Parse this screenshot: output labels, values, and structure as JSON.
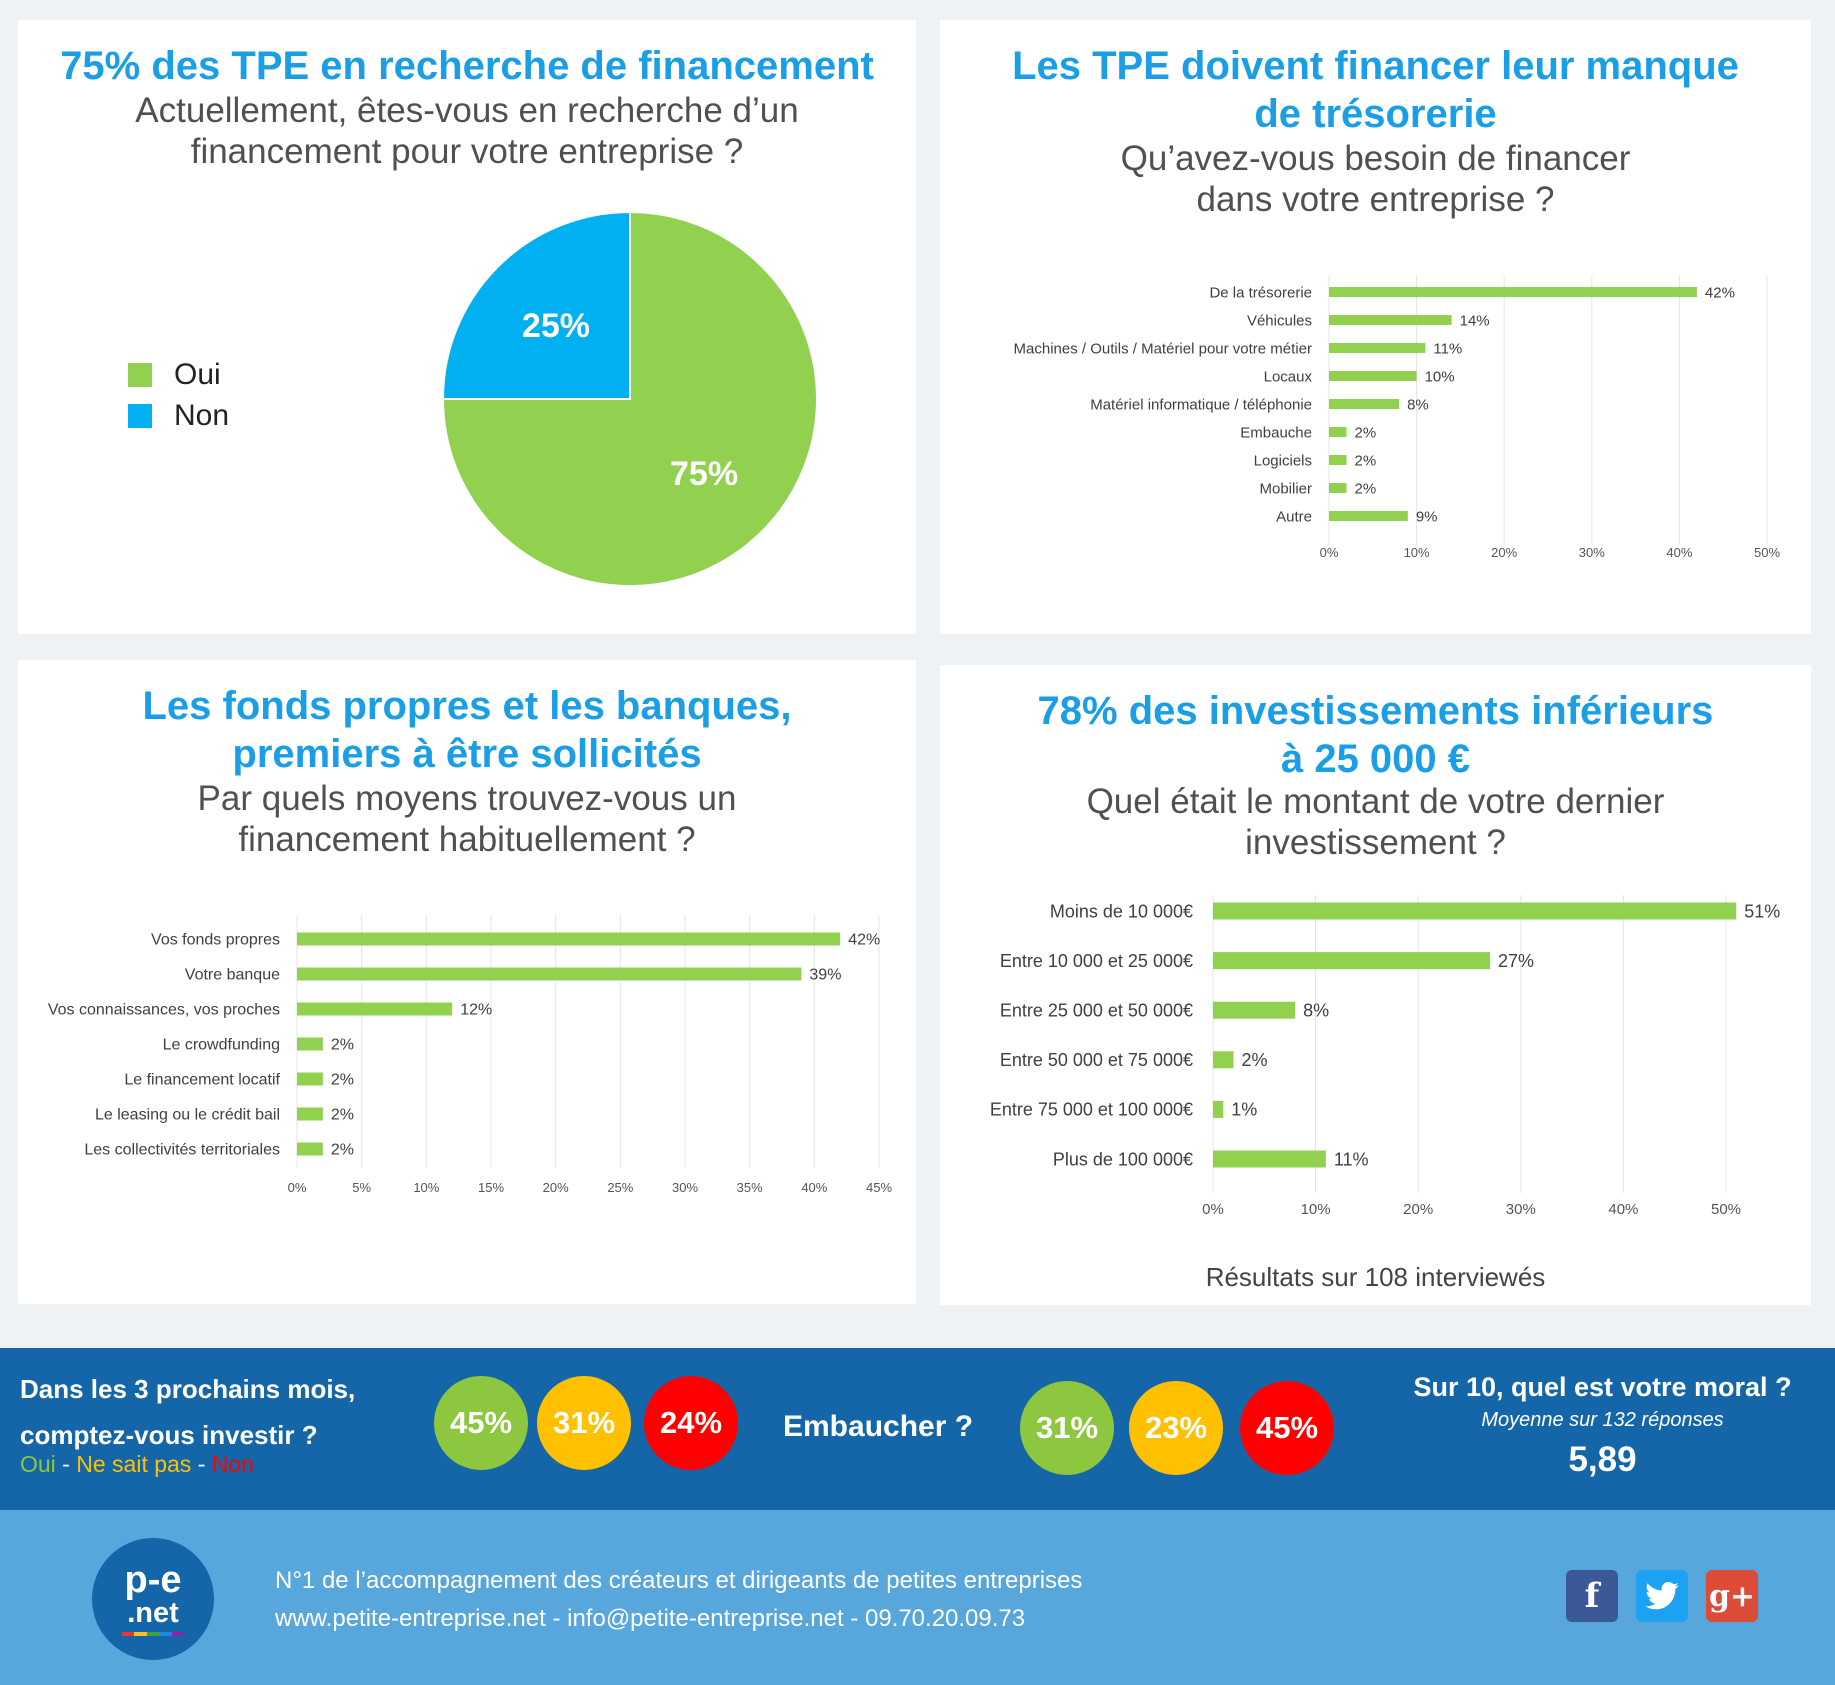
{
  "panel1": {
    "title": "75% des TPE en recherche de financement",
    "question_l1": "Actuellement, êtes-vous en recherche d’un",
    "question_l2": "financement pour votre entreprise ?"
  },
  "panel2": {
    "title_l1": "Les TPE doivent financer leur manque",
    "title_l2": "de trésorerie",
    "question_l1": "Qu’avez-vous besoin de financer",
    "question_l2": "dans votre entreprise ?"
  },
  "panel3": {
    "title_l1": "Les fonds propres et les banques,",
    "title_l2": "premiers à être sollicités",
    "question_l1": "Par quels moyens trouvez-vous un",
    "question_l2": "financement habituellement ?"
  },
  "panel4": {
    "title_l1": "78% des investissements inférieurs",
    "title_l2": "à 25 000 €",
    "question_l1": "Quel était le montant de votre dernier",
    "question_l2": "investissement ?",
    "footnote": "Résultats sur 108 interviewés"
  },
  "chart_data": [
    {
      "type": "pie",
      "categories": [
        "Oui",
        "Non"
      ],
      "values": [
        75,
        25
      ],
      "labels": [
        "75%",
        "25%"
      ],
      "colors": [
        "#92d050",
        "#00b0f0"
      ],
      "legend": "left"
    },
    {
      "type": "bar",
      "orientation": "horizontal",
      "categories": [
        "De la trésorerie",
        "Véhicules",
        "Machines / Outils / Matériel pour votre métier",
        "Locaux",
        "Matériel informatique / téléphonie",
        "Embauche",
        "Logiciels",
        "Mobilier",
        "Autre"
      ],
      "values": [
        42,
        14,
        11,
        10,
        8,
        2,
        2,
        2,
        9
      ],
      "xlim": [
        0,
        50
      ],
      "xticks": [
        "0%",
        "10%",
        "20%",
        "30%",
        "40%",
        "50%"
      ],
      "grid": true,
      "color": "#92d050"
    },
    {
      "type": "bar",
      "orientation": "horizontal",
      "categories": [
        "Vos fonds propres",
        "Votre banque",
        "Vos connaissances, vos proches",
        "Le crowdfunding",
        "Le financement locatif",
        "Le leasing ou le crédit bail",
        "Les collectivités territoriales"
      ],
      "values": [
        42,
        39,
        12,
        2,
        2,
        2,
        2
      ],
      "xlim": [
        0,
        45
      ],
      "xticks": [
        "0%",
        "5%",
        "10%",
        "15%",
        "20%",
        "25%",
        "30%",
        "35%",
        "40%",
        "45%"
      ],
      "grid": true,
      "color": "#92d050"
    },
    {
      "type": "bar",
      "orientation": "horizontal",
      "categories": [
        "Moins de 10 000€",
        "Entre 10 000 et 25 000€",
        "Entre 25 000 et 50 000€",
        "Entre 50 000 et 75 000€",
        "Entre 75 000 et 100 000€",
        "Plus de 100 000€"
      ],
      "values": [
        51,
        27,
        8,
        2,
        1,
        11
      ],
      "xlim": [
        0,
        50
      ],
      "xticks": [
        "0%",
        "10%",
        "20%",
        "30%",
        "40%",
        "50%"
      ],
      "grid": true,
      "color": "#92d050"
    }
  ],
  "band": {
    "invest_q_l1": "Dans les 3 prochains mois,",
    "invest_q_l2": "comptez-vous investir ?",
    "legend_oui": "Oui",
    "legend_sep1": " - ",
    "legend_nsp": "Ne sait pas",
    "legend_sep2": " - ",
    "legend_non": "Non",
    "invest_oui": "45%",
    "invest_nsp": "31%",
    "invest_non": "24%",
    "hire_q": "Embaucher ?",
    "hire_oui": "31%",
    "hire_nsp": "23%",
    "hire_non": "45%",
    "moral_q": "Sur 10, quel est votre moral ?",
    "moral_sub": "Moyenne sur 132 réponses",
    "moral_value": "5,89",
    "color_oui": "#8dc63f",
    "color_nsp": "#ffc000",
    "color_non": "#ff0000"
  },
  "footer": {
    "logo_l1": "p-e",
    "logo_l2": ".net",
    "line1": "N°1 de l’accompagnement des créateurs et dirigeants de petites entreprises",
    "line2": "www.petite-entreprise.net - info@petite-entreprise.net - 09.70.20.09.73",
    "facebook_icon": "f",
    "twitter_icon": "twitter-bird",
    "googleplus_icon": "g+"
  }
}
